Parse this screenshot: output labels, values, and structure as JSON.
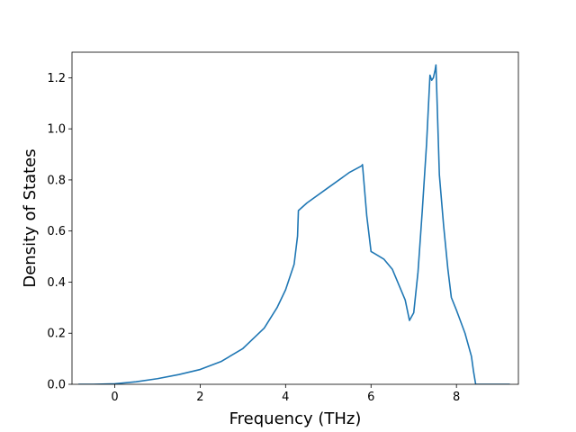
{
  "chart_data": {
    "type": "line",
    "title": "",
    "xlabel": "Frequency (THz)",
    "ylabel": "Density of States",
    "xlim": [
      -1.0,
      9.45
    ],
    "ylim": [
      0,
      1.3
    ],
    "x_ticks": [
      0,
      2,
      4,
      6,
      8
    ],
    "x_tick_labels": [
      "0",
      "2",
      "4",
      "6",
      "8"
    ],
    "y_ticks": [
      0.0,
      0.2,
      0.4,
      0.6,
      0.8,
      1.0,
      1.2
    ],
    "y_tick_labels": [
      "0.0",
      "0.2",
      "0.4",
      "0.6",
      "0.8",
      "1.0",
      "1.2"
    ],
    "grid": false,
    "legend": "none",
    "line_color": "#1f77b4",
    "series": [
      {
        "x": [
          -0.85,
          -0.5,
          0,
          0.5,
          1.0,
          1.5,
          2.0,
          2.5,
          3.0,
          3.5,
          3.8,
          4.0,
          4.2,
          4.28,
          4.3,
          4.5,
          5.0,
          5.5,
          5.78,
          5.8,
          5.9,
          6.0,
          6.1,
          6.3,
          6.5,
          6.8,
          6.9,
          7.0,
          7.1,
          7.2,
          7.3,
          7.38,
          7.42,
          7.46,
          7.5,
          7.52,
          7.6,
          7.7,
          7.8,
          7.88,
          8.0,
          8.2,
          8.35,
          8.4,
          8.45,
          9.25
        ],
        "y": [
          0,
          0,
          0.002,
          0.01,
          0.022,
          0.038,
          0.058,
          0.09,
          0.14,
          0.22,
          0.3,
          0.37,
          0.47,
          0.58,
          0.68,
          0.71,
          0.77,
          0.83,
          0.855,
          0.86,
          0.66,
          0.52,
          0.51,
          0.49,
          0.45,
          0.33,
          0.25,
          0.28,
          0.44,
          0.68,
          0.94,
          1.21,
          1.19,
          1.2,
          1.23,
          1.25,
          0.82,
          0.62,
          0.45,
          0.34,
          0.29,
          0.2,
          0.11,
          0.05,
          0,
          0
        ]
      }
    ]
  }
}
